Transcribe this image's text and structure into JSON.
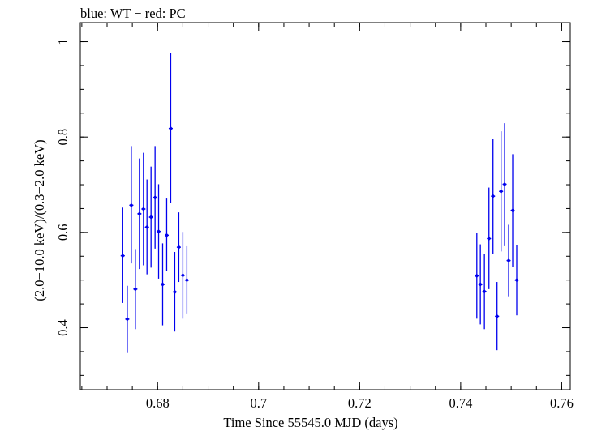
{
  "chart_data": {
    "type": "scatter",
    "title": "blue: WT − red: PC",
    "xlabel": "Time Since 55545.0 MJD (days)",
    "ylabel": "(2.0−10.0 keV)/(0.3−2.0 keV)",
    "xlim": [
      0.6647,
      0.7617
    ],
    "ylim": [
      0.27,
      1.04
    ],
    "grid": false,
    "x_ticks": [
      {
        "value": 0.68,
        "label": "0.68"
      },
      {
        "value": 0.7,
        "label": "0.7"
      },
      {
        "value": 0.72,
        "label": "0.72"
      },
      {
        "value": 0.74,
        "label": "0.74"
      },
      {
        "value": 0.76,
        "label": "0.76"
      }
    ],
    "y_ticks": [
      {
        "value": 0.4,
        "label": "0.4"
      },
      {
        "value": 0.6,
        "label": "0.6"
      },
      {
        "value": 0.8,
        "label": "0.8"
      },
      {
        "value": 1.0,
        "label": "1"
      }
    ],
    "x_minor_step": 0.005,
    "y_minor_step": 0.05,
    "series": [
      {
        "name": "WT",
        "color": "#0000ee",
        "x_halfwidth": 0.0004,
        "points": [
          {
            "x": 0.6731,
            "y": 0.551,
            "ylo": 0.452,
            "yhi": 0.652
          },
          {
            "x": 0.674,
            "y": 0.418,
            "ylo": 0.347,
            "yhi": 0.488
          },
          {
            "x": 0.6748,
            "y": 0.657,
            "ylo": 0.535,
            "yhi": 0.781
          },
          {
            "x": 0.6756,
            "y": 0.481,
            "ylo": 0.397,
            "yhi": 0.565
          },
          {
            "x": 0.6764,
            "y": 0.639,
            "ylo": 0.523,
            "yhi": 0.755
          },
          {
            "x": 0.6772,
            "y": 0.649,
            "ylo": 0.531,
            "yhi": 0.767
          },
          {
            "x": 0.6779,
            "y": 0.611,
            "ylo": 0.512,
            "yhi": 0.711
          },
          {
            "x": 0.6787,
            "y": 0.632,
            "ylo": 0.526,
            "yhi": 0.738
          },
          {
            "x": 0.6795,
            "y": 0.673,
            "ylo": 0.566,
            "yhi": 0.781
          },
          {
            "x": 0.6802,
            "y": 0.602,
            "ylo": 0.503,
            "yhi": 0.701
          },
          {
            "x": 0.681,
            "y": 0.491,
            "ylo": 0.405,
            "yhi": 0.577
          },
          {
            "x": 0.6818,
            "y": 0.594,
            "ylo": 0.519,
            "yhi": 0.671
          },
          {
            "x": 0.6826,
            "y": 0.818,
            "ylo": 0.661,
            "yhi": 0.976
          },
          {
            "x": 0.6834,
            "y": 0.475,
            "ylo": 0.392,
            "yhi": 0.559
          },
          {
            "x": 0.6842,
            "y": 0.569,
            "ylo": 0.496,
            "yhi": 0.642
          },
          {
            "x": 0.685,
            "y": 0.51,
            "ylo": 0.419,
            "yhi": 0.601
          },
          {
            "x": 0.6858,
            "y": 0.5,
            "ylo": 0.43,
            "yhi": 0.571
          },
          {
            "x": 0.7432,
            "y": 0.509,
            "ylo": 0.419,
            "yhi": 0.599
          },
          {
            "x": 0.7439,
            "y": 0.491,
            "ylo": 0.407,
            "yhi": 0.575
          },
          {
            "x": 0.7447,
            "y": 0.476,
            "ylo": 0.397,
            "yhi": 0.555
          },
          {
            "x": 0.7456,
            "y": 0.587,
            "ylo": 0.481,
            "yhi": 0.694
          },
          {
            "x": 0.7464,
            "y": 0.676,
            "ylo": 0.555,
            "yhi": 0.796
          },
          {
            "x": 0.7472,
            "y": 0.424,
            "ylo": 0.353,
            "yhi": 0.496
          },
          {
            "x": 0.748,
            "y": 0.686,
            "ylo": 0.56,
            "yhi": 0.812
          },
          {
            "x": 0.7487,
            "y": 0.701,
            "ylo": 0.571,
            "yhi": 0.829
          },
          {
            "x": 0.7495,
            "y": 0.541,
            "ylo": 0.466,
            "yhi": 0.616
          },
          {
            "x": 0.7503,
            "y": 0.646,
            "ylo": 0.528,
            "yhi": 0.764
          },
          {
            "x": 0.7511,
            "y": 0.5,
            "ylo": 0.426,
            "yhi": 0.574
          }
        ]
      }
    ]
  }
}
